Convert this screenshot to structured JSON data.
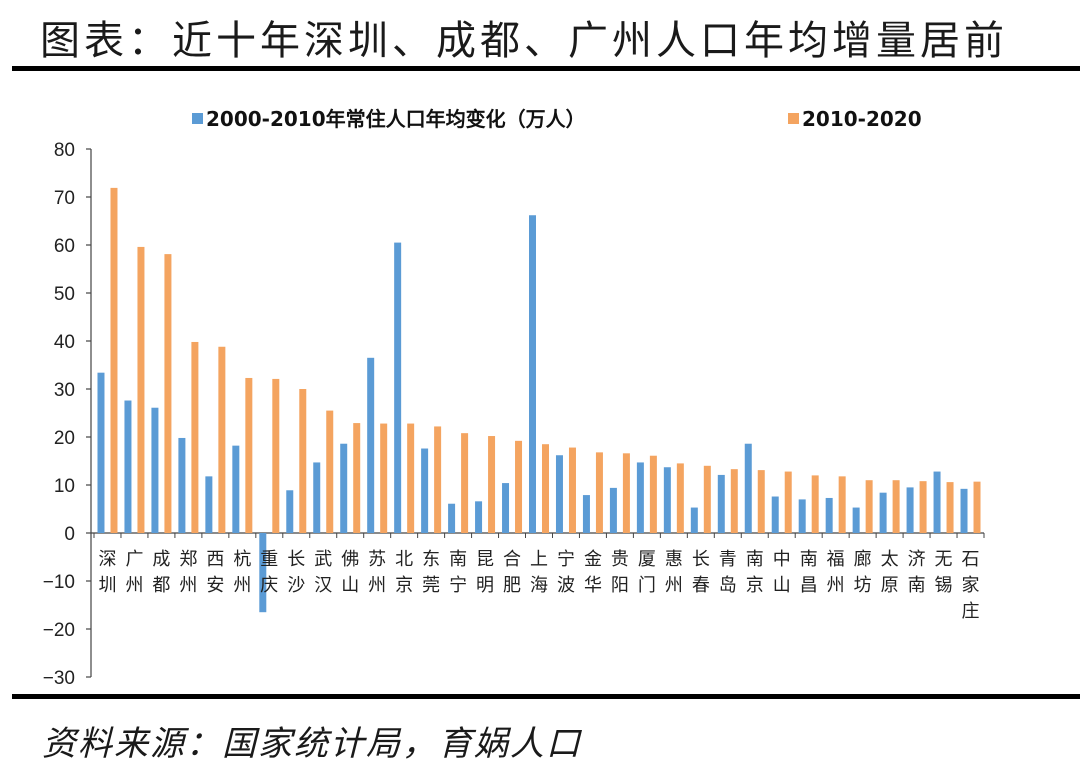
{
  "header": {
    "title": "图表：近十年深圳、成都、广州人口年均增量居前"
  },
  "footer": {
    "source": "资料来源：国家统计局，育娲人口"
  },
  "colors": {
    "series1": "#5b9bd5",
    "series2": "#f4a460"
  },
  "chart_data": {
    "type": "bar",
    "categories": [
      [
        "深",
        "圳"
      ],
      [
        "广",
        "州"
      ],
      [
        "成",
        "都"
      ],
      [
        "郑",
        "州"
      ],
      [
        "西",
        "安"
      ],
      [
        "杭",
        "州"
      ],
      [
        "重",
        "庆"
      ],
      [
        "长",
        "沙"
      ],
      [
        "武",
        "汉"
      ],
      [
        "佛",
        "山"
      ],
      [
        "苏",
        "州"
      ],
      [
        "北",
        "京"
      ],
      [
        "东",
        "莞"
      ],
      [
        "南",
        "宁"
      ],
      [
        "昆",
        "明"
      ],
      [
        "合",
        "肥"
      ],
      [
        "上",
        "海"
      ],
      [
        "宁",
        "波"
      ],
      [
        "金",
        "华"
      ],
      [
        "贵",
        "阳"
      ],
      [
        "厦",
        "门"
      ],
      [
        "惠",
        "州"
      ],
      [
        "长",
        "春"
      ],
      [
        "青",
        "岛"
      ],
      [
        "南",
        "京"
      ],
      [
        "中",
        "山"
      ],
      [
        "南",
        "昌"
      ],
      [
        "福",
        "州"
      ],
      [
        "廊",
        "坊"
      ],
      [
        "太",
        "原"
      ],
      [
        "济",
        "南"
      ],
      [
        "无",
        "锡"
      ],
      [
        "石",
        "家",
        "庄"
      ]
    ],
    "series": [
      {
        "name": "2000-2010年常住人口年均变化（万人）",
        "values": [
          33.4,
          27.6,
          26.1,
          19.8,
          11.8,
          18.2,
          -16.5,
          8.9,
          14.7,
          18.6,
          36.5,
          60.5,
          17.6,
          6.1,
          6.6,
          10.4,
          66.2,
          16.2,
          7.9,
          9.4,
          14.7,
          13.7,
          5.3,
          12.1,
          18.6,
          7.6,
          7.0,
          7.3,
          5.3,
          8.4,
          9.5,
          12.8,
          9.2
        ]
      },
      {
        "name": "2010-2020",
        "values": [
          71.9,
          59.6,
          58.1,
          39.8,
          38.8,
          32.3,
          32.1,
          30.0,
          25.5,
          22.9,
          22.8,
          22.8,
          22.2,
          20.8,
          20.2,
          19.2,
          18.5,
          17.8,
          16.8,
          16.6,
          16.1,
          14.5,
          14.0,
          13.3,
          13.1,
          12.8,
          12.0,
          11.8,
          11.0,
          11.0,
          10.8,
          10.6,
          10.7
        ]
      }
    ],
    "yticks": [
      "80",
      "70",
      "60",
      "50",
      "40",
      "30",
      "20",
      "10",
      "0",
      "−10",
      "−20",
      "−30"
    ],
    "ylim": [
      -30,
      80
    ],
    "xlabel": "",
    "ylabel": "",
    "legend_position": "top"
  }
}
